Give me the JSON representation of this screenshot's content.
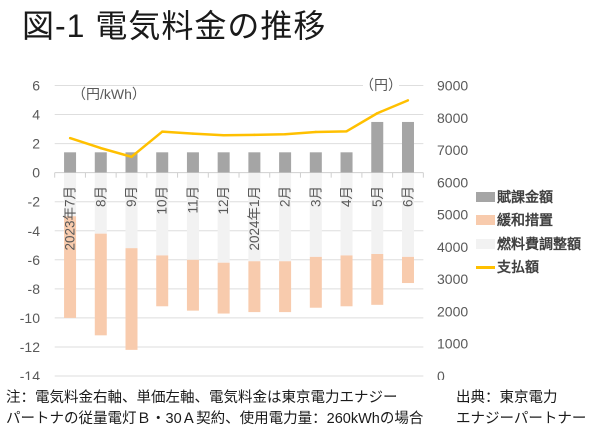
{
  "chart_data": {
    "type": "bar",
    "title": "図-1 電気料金の推移",
    "categories": [
      "2023年7月",
      "8月",
      "9月",
      "10月",
      "11月",
      "12月",
      "2024年1月",
      "2月",
      "3月",
      "4月",
      "5月",
      "6月"
    ],
    "series": [
      {
        "name": "賦課金額",
        "type": "bar",
        "axis": "left",
        "color": "#a5a5a5",
        "values": [
          1.4,
          1.4,
          1.4,
          1.4,
          1.4,
          1.4,
          1.4,
          1.4,
          1.4,
          1.4,
          3.49,
          3.49
        ]
      },
      {
        "name": "緩和措置",
        "type": "bar",
        "axis": "left",
        "color": "#f8cbad",
        "stacked_below": "燃料費調整額",
        "values": [
          -7.0,
          -7.0,
          -7.0,
          -3.5,
          -3.5,
          -3.5,
          -3.5,
          -3.5,
          -3.5,
          -3.5,
          -3.5,
          -1.8
        ]
      },
      {
        "name": "燃料費調整額",
        "type": "bar",
        "axis": "left",
        "color": "#f2f2f2",
        "values": [
          -3.0,
          -4.2,
          -5.2,
          -5.7,
          -6.0,
          -6.2,
          -6.1,
          -6.1,
          -5.8,
          -5.7,
          -5.6,
          -5.8
        ]
      },
      {
        "name": "支払額",
        "type": "line",
        "axis": "right",
        "color": "#ffc000",
        "values": [
          7370,
          7060,
          6790,
          7570,
          7510,
          7460,
          7470,
          7490,
          7560,
          7580,
          8140,
          8540
        ]
      }
    ],
    "y_left": {
      "label": "（円/kWh）",
      "ylim": [
        -14,
        6
      ],
      "ticks": [
        6,
        4,
        2,
        0,
        -2,
        -4,
        -6,
        -8,
        -10,
        -12,
        -14
      ]
    },
    "y_right": {
      "label": "（円）",
      "ylim": [
        0,
        9000
      ],
      "ticks": [
        9000,
        8000,
        7000,
        6000,
        5000,
        4000,
        3000,
        2000,
        1000,
        0
      ]
    },
    "xlabel": "",
    "grid": true,
    "legend_position": "right"
  },
  "notes": {
    "line1": "注：電気料金右軸、単価左軸、電気料金は東京電力エナジー",
    "line2": "パートナの従量電灯Ｂ・30Ａ契約、使用電力量：260kWhの場合"
  },
  "source": {
    "line1": "出典：東京電力",
    "line2": "エナジーパートナー"
  }
}
